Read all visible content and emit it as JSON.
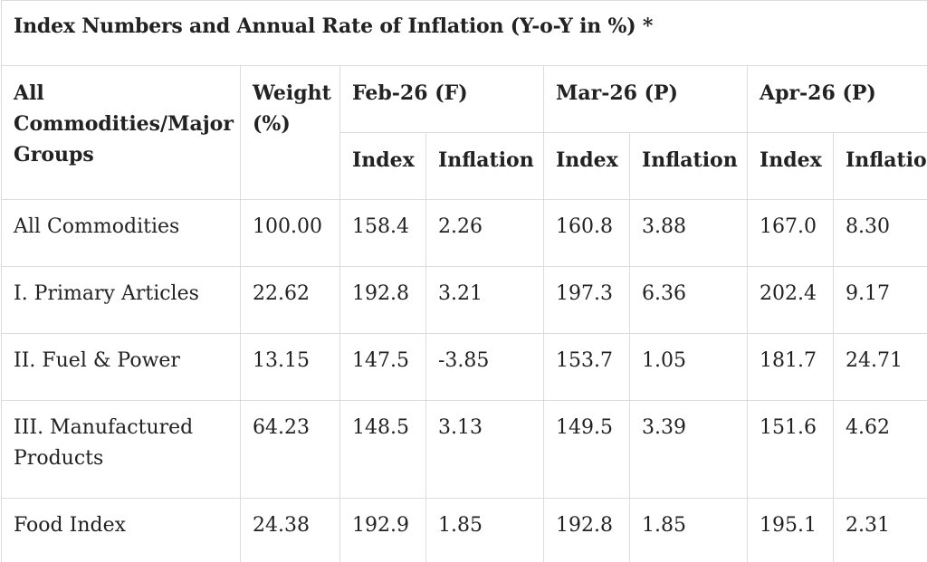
{
  "title": "Index Numbers and Annual Rate of Inflation (Y-o-Y in %) *",
  "headers": {
    "group_col": "All Commodities/Major Groups",
    "group_col_lines": [
      "All",
      "Commodities/Major",
      "Groups"
    ],
    "weight_col": "Weight (%)",
    "weight_col_lines": [
      "Weight",
      "(%)"
    ],
    "periods": [
      "Feb-26 (F)",
      "Mar-26 (P)",
      "Apr-26 (P)"
    ],
    "sub_index": "Index",
    "sub_inflation": "Inflation"
  },
  "rows": [
    {
      "name": "All Commodities",
      "weight": "100.00",
      "feb_index": "158.4",
      "feb_inflation": "2.26",
      "mar_index": "160.8",
      "mar_inflation": "3.88",
      "apr_index": "167.0",
      "apr_inflation": "8.30"
    },
    {
      "name": "I. Primary Articles",
      "weight": "22.62",
      "feb_index": "192.8",
      "feb_inflation": "3.21",
      "mar_index": "197.3",
      "mar_inflation": "6.36",
      "apr_index": "202.4",
      "apr_inflation": "9.17"
    },
    {
      "name": "II. Fuel & Power",
      "weight": "13.15",
      "feb_index": "147.5",
      "feb_inflation": "-3.85",
      "mar_index": "153.7",
      "mar_inflation": "1.05",
      "apr_index": "181.7",
      "apr_inflation": "24.71"
    },
    {
      "name": "III. Manufactured Products",
      "name_lines": [
        "III. Manufactured",
        "Products"
      ],
      "weight": "64.23",
      "feb_index": "148.5",
      "feb_inflation": "3.13",
      "mar_index": "149.5",
      "mar_inflation": "3.39",
      "apr_index": "151.6",
      "apr_inflation": "4.62"
    },
    {
      "name": "Food Index",
      "weight": "24.38",
      "feb_index": "192.9",
      "feb_inflation": "1.85",
      "mar_index": "192.8",
      "mar_inflation": "1.85",
      "apr_index": "195.1",
      "apr_inflation": "2.31"
    }
  ]
}
